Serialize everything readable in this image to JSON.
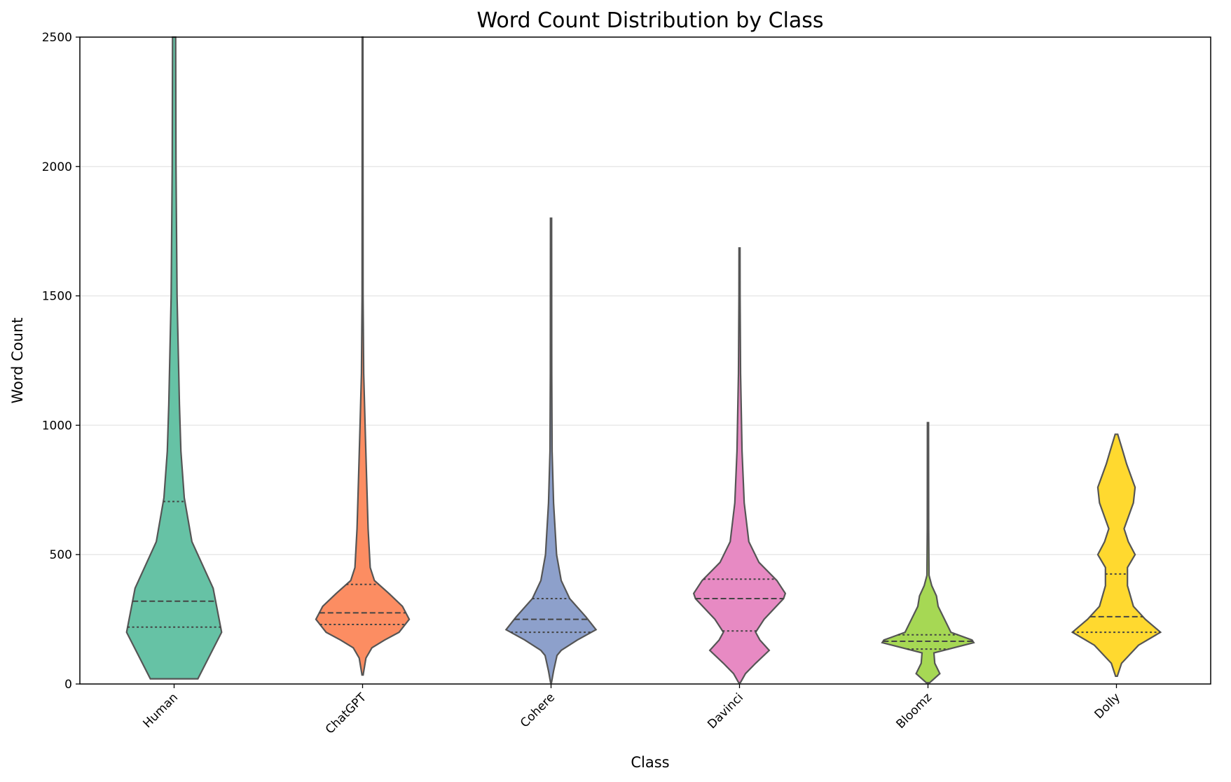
{
  "chart_data": {
    "type": "violin",
    "title": "Word Count Distribution by Class",
    "xlabel": "Class",
    "ylabel": "Word Count",
    "ylim": [
      0,
      2500
    ],
    "yticks": [
      0,
      500,
      1000,
      1500,
      2000,
      2500
    ],
    "grid": "y-major",
    "categories": [
      "Human",
      "ChatGPT",
      "Cohere",
      "Davinci",
      "Bloomz",
      "Dolly"
    ],
    "colors": [
      "#66c2a5",
      "#fc8d62",
      "#8da0cb",
      "#e78ac3",
      "#a6d854",
      "#ffd92f"
    ],
    "series": [
      {
        "category": "Human",
        "min": 20,
        "max": 2500,
        "q1": 220,
        "median": 320,
        "q3": 705,
        "profile": [
          [
            20,
            0.28
          ],
          [
            200,
            0.56
          ],
          [
            370,
            0.46
          ],
          [
            550,
            0.21
          ],
          [
            720,
            0.12
          ],
          [
            900,
            0.08
          ],
          [
            1080,
            0.063
          ],
          [
            1500,
            0.035
          ],
          [
            2000,
            0.022
          ],
          [
            2500,
            0.018
          ]
        ]
      },
      {
        "category": "ChatGPT",
        "min": 35,
        "max": 2500,
        "q1": 230,
        "median": 275,
        "q3": 385,
        "profile": [
          [
            35,
            0.007
          ],
          [
            100,
            0.04
          ],
          [
            140,
            0.11
          ],
          [
            170,
            0.26
          ],
          [
            200,
            0.43
          ],
          [
            250,
            0.55
          ],
          [
            300,
            0.47
          ],
          [
            350,
            0.31
          ],
          [
            400,
            0.14
          ],
          [
            450,
            0.09
          ],
          [
            600,
            0.065
          ],
          [
            800,
            0.047
          ],
          [
            1000,
            0.03
          ],
          [
            1200,
            0.013
          ],
          [
            1500,
            0.006
          ],
          [
            2500,
            0.004
          ]
        ]
      },
      {
        "category": "Cohere",
        "min": 5,
        "max": 1800,
        "q1": 200,
        "median": 250,
        "q3": 330,
        "profile": [
          [
            5,
            0.005
          ],
          [
            50,
            0.03
          ],
          [
            110,
            0.07
          ],
          [
            130,
            0.12
          ],
          [
            170,
            0.31
          ],
          [
            210,
            0.53
          ],
          [
            260,
            0.41
          ],
          [
            330,
            0.22
          ],
          [
            400,
            0.12
          ],
          [
            500,
            0.065
          ],
          [
            700,
            0.03
          ],
          [
            900,
            0.012
          ],
          [
            1200,
            0.008
          ],
          [
            1800,
            0.007
          ]
        ]
      },
      {
        "category": "Davinci",
        "min": 5,
        "max": 1685,
        "q1": 205,
        "median": 330,
        "q3": 405,
        "profile": [
          [
            5,
            0.01
          ],
          [
            40,
            0.07
          ],
          [
            80,
            0.19
          ],
          [
            130,
            0.35
          ],
          [
            170,
            0.24
          ],
          [
            200,
            0.19
          ],
          [
            250,
            0.29
          ],
          [
            330,
            0.52
          ],
          [
            350,
            0.54
          ],
          [
            400,
            0.44
          ],
          [
            470,
            0.23
          ],
          [
            550,
            0.11
          ],
          [
            700,
            0.055
          ],
          [
            900,
            0.03
          ],
          [
            1200,
            0.012
          ],
          [
            1500,
            0.007
          ],
          [
            1685,
            0.006
          ]
        ]
      },
      {
        "category": "Bloomz",
        "min": 5,
        "max": 1010,
        "q1": 135,
        "median": 165,
        "q3": 190,
        "profile": [
          [
            5,
            0.02
          ],
          [
            40,
            0.14
          ],
          [
            80,
            0.08
          ],
          [
            120,
            0.07
          ],
          [
            160,
            0.54
          ],
          [
            170,
            0.52
          ],
          [
            200,
            0.27
          ],
          [
            300,
            0.12
          ],
          [
            340,
            0.1
          ],
          [
            380,
            0.045
          ],
          [
            420,
            0.012
          ],
          [
            600,
            0.008
          ],
          [
            1010,
            0.007
          ]
        ]
      },
      {
        "category": "Dolly",
        "min": 30,
        "max": 965,
        "q1": 200,
        "median": 260,
        "q3": 425,
        "profile": [
          [
            30,
            0.01
          ],
          [
            80,
            0.06
          ],
          [
            150,
            0.26
          ],
          [
            200,
            0.52
          ],
          [
            250,
            0.34
          ],
          [
            300,
            0.2
          ],
          [
            380,
            0.13
          ],
          [
            450,
            0.13
          ],
          [
            500,
            0.22
          ],
          [
            550,
            0.14
          ],
          [
            600,
            0.09
          ],
          [
            700,
            0.2
          ],
          [
            760,
            0.22
          ],
          [
            850,
            0.12
          ],
          [
            900,
            0.075
          ],
          [
            965,
            0.015
          ]
        ]
      }
    ]
  }
}
